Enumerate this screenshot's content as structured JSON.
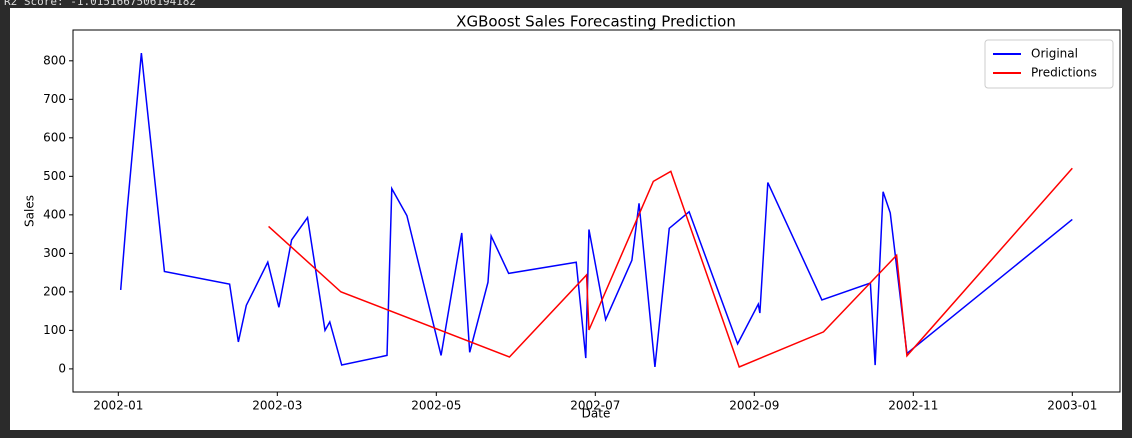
{
  "output_text": "R2 Score: -1.0151667506194182",
  "chart_data": {
    "type": "line",
    "title": "XGBoost Sales Forecasting Prediction",
    "x_label": "Date",
    "y_label": "Sales",
    "xlim": [
      -0.57,
      12.6
    ],
    "ylim": [
      -60,
      880
    ],
    "xticks": [
      {
        "value": 0,
        "label": "2002-01"
      },
      {
        "value": 2,
        "label": "2002-03"
      },
      {
        "value": 4,
        "label": "2002-05"
      },
      {
        "value": 6,
        "label": "2002-07"
      },
      {
        "value": 8,
        "label": "2002-09"
      },
      {
        "value": 10,
        "label": "2002-11"
      },
      {
        "value": 12,
        "label": "2003-01"
      }
    ],
    "yticks": [
      0,
      100,
      200,
      300,
      400,
      500,
      600,
      700,
      800
    ],
    "grid": false,
    "legend": "upper right",
    "series": [
      {
        "name": "Original",
        "color": "#0000ff",
        "x": [
          0.03,
          0.11,
          0.29,
          0.58,
          1.4,
          1.51,
          1.61,
          1.88,
          2.02,
          2.18,
          2.38,
          2.6,
          2.66,
          2.81,
          3.38,
          3.44,
          3.63,
          4.06,
          4.32,
          4.42,
          4.65,
          4.69,
          4.91,
          5.76,
          5.88,
          5.92,
          6.13,
          6.46,
          6.55,
          6.75,
          6.93,
          7.18,
          7.79,
          8.05,
          8.07,
          8.17,
          8.85,
          9.46,
          9.52,
          9.62,
          9.71,
          9.92,
          12.0
        ],
        "values": [
          205,
          410,
          820,
          253,
          220,
          70,
          165,
          277,
          160,
          335,
          393,
          100,
          122,
          10,
          35,
          468,
          398,
          35,
          353,
          43,
          225,
          345,
          248,
          277,
          28,
          362,
          128,
          282,
          430,
          5,
          365,
          408,
          65,
          168,
          145,
          484,
          179,
          223,
          10,
          460,
          405,
          40,
          388
        ]
      },
      {
        "name": "Predictions",
        "color": "#ff0000",
        "x": [
          1.89,
          2.8,
          4.92,
          5.89,
          5.92,
          6.73,
          6.95,
          7.81,
          8.87,
          9.79,
          9.92,
          12.0
        ],
        "values": [
          370,
          200,
          31,
          244,
          101,
          487,
          513,
          5,
          96,
          295,
          34,
          521
        ]
      }
    ]
  }
}
